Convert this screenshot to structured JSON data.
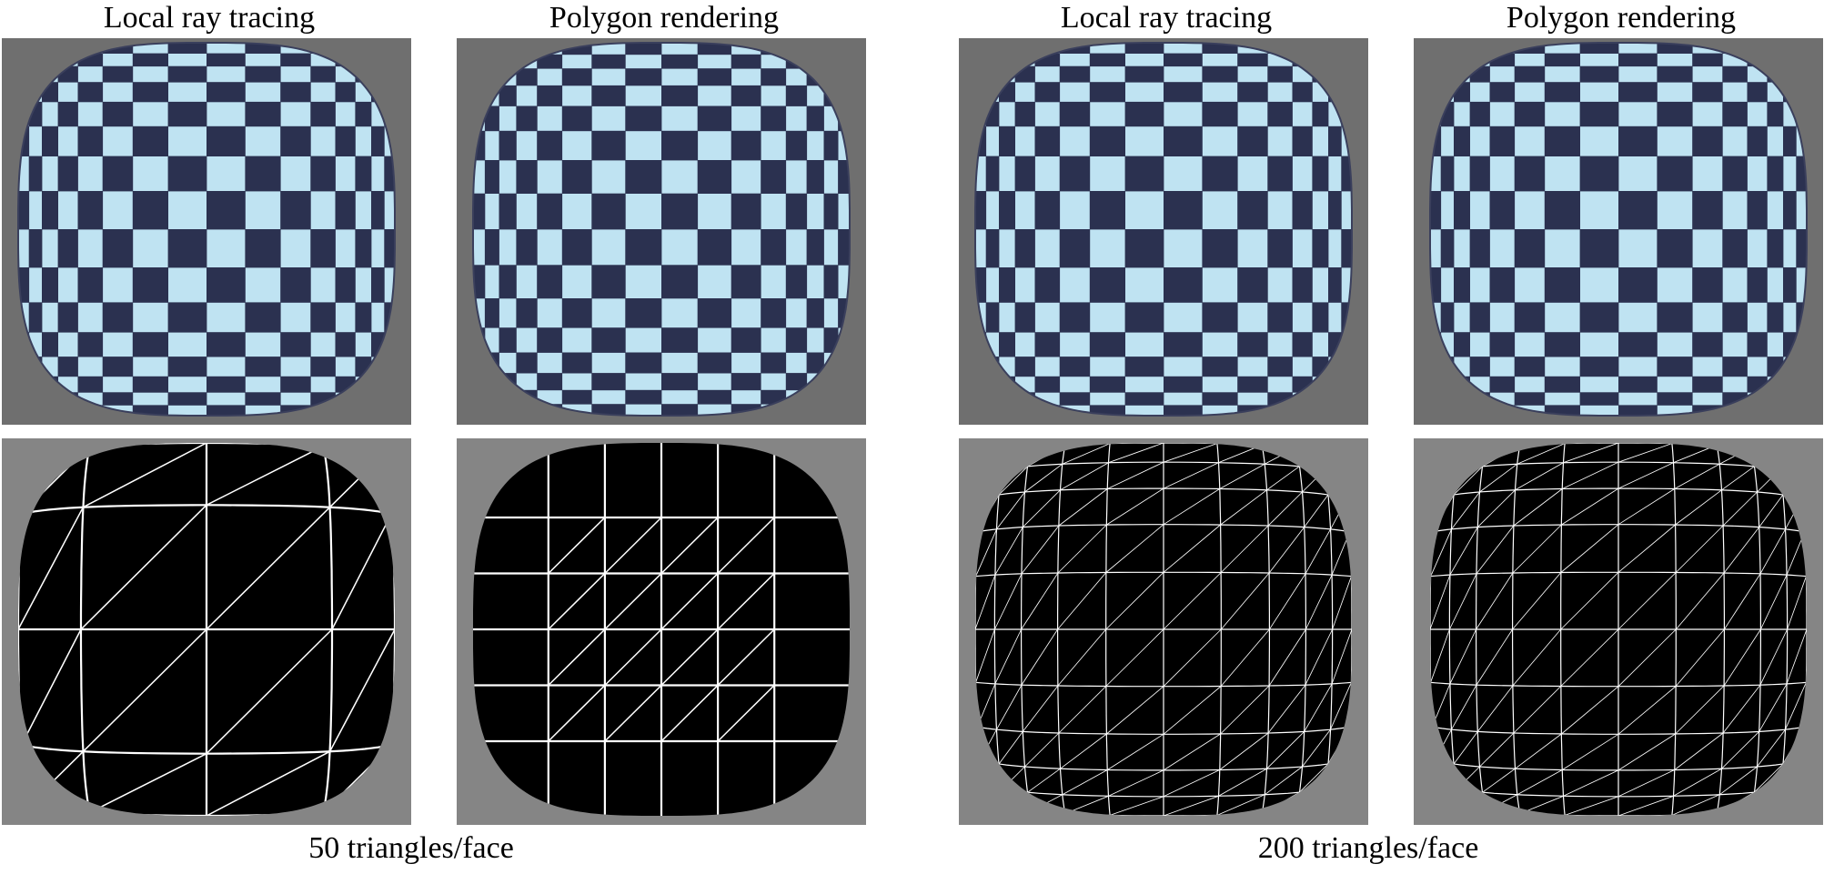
{
  "figure": {
    "column_titles": [
      "Local ray tracing",
      "Polygon rendering",
      "Local ray tracing",
      "Polygon rendering"
    ],
    "group_labels": [
      "50 triangles/face",
      "200 triangles/face"
    ],
    "colors": {
      "checker_light": "#bfe3f2",
      "checker_dark": "#2b3150",
      "outline": "#3a3f5c",
      "panel_bg_top": "#6f6f6f",
      "panel_bg_bottom": "#858585",
      "wire_bg": "#000000",
      "wire_line": "#ffffff"
    }
  }
}
